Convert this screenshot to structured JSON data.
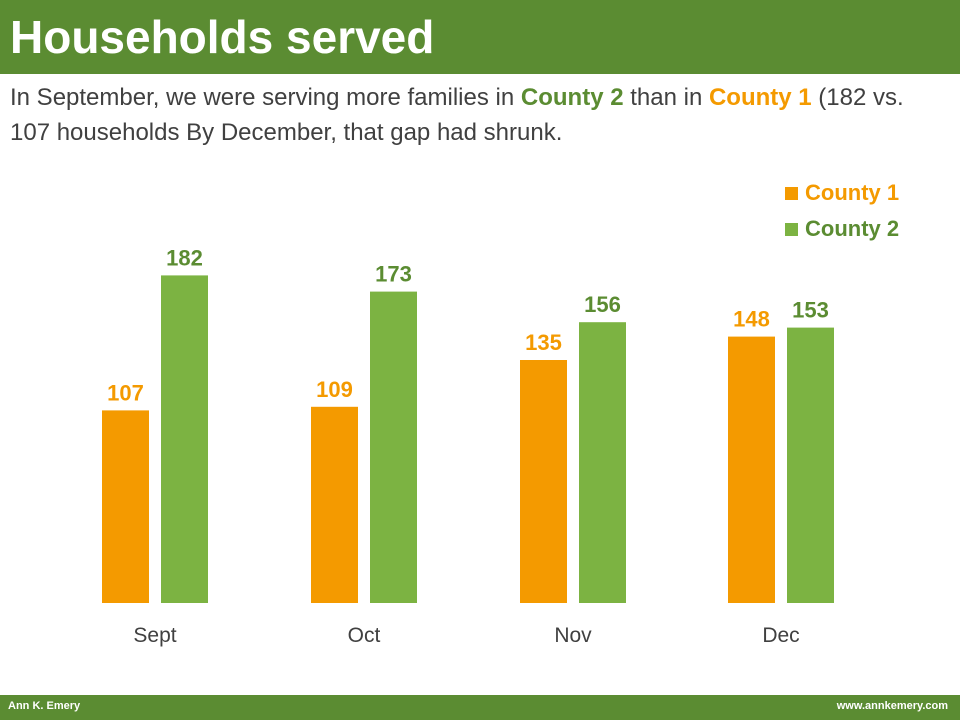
{
  "header": {
    "title": "Households served",
    "subtitle": {
      "part1": "In September,  we were serving more families in ",
      "county2": "County 2",
      "part2": " than in ",
      "county1": "County 1",
      "part3": " (182 vs. 107 households  By December,  that gap had shrunk."
    }
  },
  "footer": {
    "author": "Ann K. Emery",
    "website": "www.annkemery.com"
  },
  "colors": {
    "county1": "#f49a00",
    "county2": "#7cb342",
    "header_bar": "#5b8c32"
  },
  "chart_data": {
    "type": "bar",
    "title": "",
    "xlabel": "",
    "ylabel": "",
    "categories": [
      "Sept",
      "Oct",
      "Nov",
      "Dec"
    ],
    "series": [
      {
        "name": "County 1",
        "values": [
          107,
          109,
          135,
          148
        ]
      },
      {
        "name": "County 2",
        "values": [
          182,
          173,
          156,
          153
        ]
      }
    ],
    "ylim": [
      0,
      185
    ],
    "grid": false,
    "legend": "top-right",
    "data_labels": true
  }
}
